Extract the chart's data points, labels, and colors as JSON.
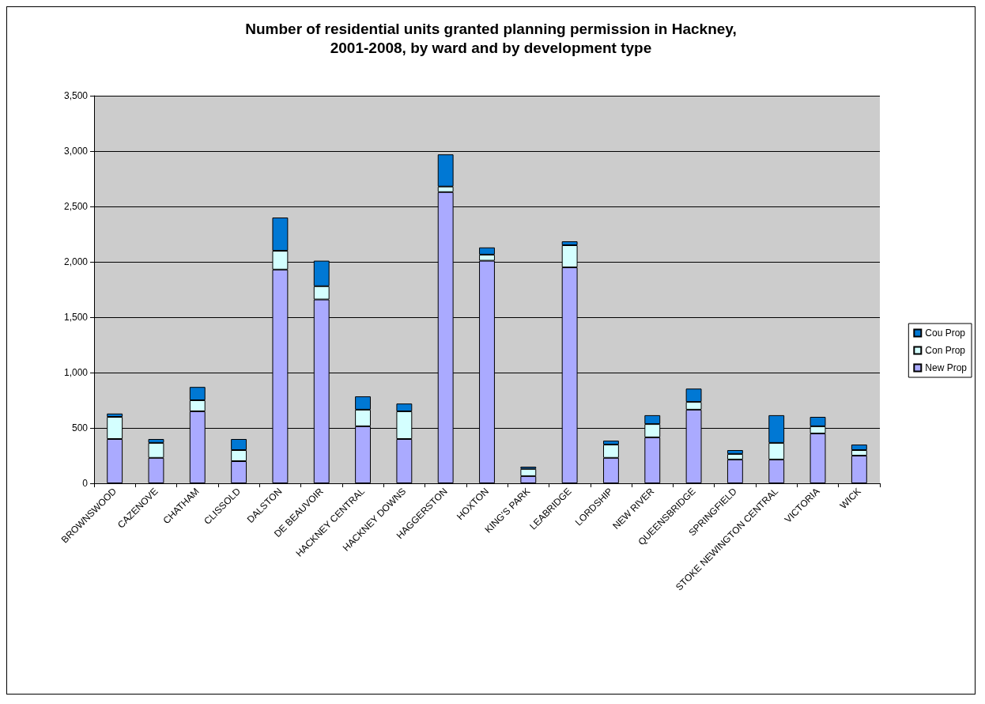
{
  "chart_data": {
    "type": "bar",
    "title": "Number of residential units granted planning permission in Hackney,\n2001-2008, by ward and by development type",
    "stacked": true,
    "grid": "y",
    "legend": "right",
    "categories": [
      "BROWNSWOOD",
      "CAZENOVE",
      "CHATHAM",
      "CLISSOLD",
      "DALSTON",
      "DE BEAUVOIR",
      "HACKNEY CENTRAL",
      "HACKNEY DOWNS",
      "HAGGERSTON",
      "HOXTON",
      "KING'S PARK",
      "LEABRIDGE",
      "LORDSHIP",
      "NEW RIVER",
      "QUEENSBRIDGE",
      "SPRINGFIELD",
      "STOKE NEWINGTON CENTRAL",
      "VICTORIA",
      "WICK"
    ],
    "series": [
      {
        "name": "New Prop",
        "color": "#aaaaff",
        "values": [
          400,
          230,
          650,
          200,
          1930,
          1660,
          515,
          400,
          2630,
          2010,
          65,
          1950,
          230,
          415,
          665,
          215,
          215,
          450,
          250
        ]
      },
      {
        "name": "Con Prop",
        "color": "#d4ffff",
        "values": [
          200,
          135,
          100,
          100,
          170,
          120,
          150,
          250,
          50,
          55,
          65,
          200,
          120,
          120,
          70,
          50,
          150,
          65,
          50
        ]
      },
      {
        "name": "Cou Prop",
        "color": "#0078d4",
        "values": [
          30,
          35,
          120,
          100,
          300,
          230,
          120,
          70,
          290,
          65,
          20,
          35,
          35,
          80,
          120,
          35,
          250,
          85,
          50
        ]
      }
    ],
    "ylim": [
      0,
      3500
    ],
    "yticks": [
      0,
      {
        "value": 500,
        "label": "500"
      },
      {
        "value": 1000,
        "label": "1,000"
      },
      {
        "value": 1500,
        "label": "1,500"
      },
      {
        "value": 2000,
        "label": "2,000"
      },
      {
        "value": 2500,
        "label": "2,500"
      },
      {
        "value": 3000,
        "label": "3,000"
      },
      {
        "value": 3500,
        "label": "3,500"
      }
    ]
  }
}
